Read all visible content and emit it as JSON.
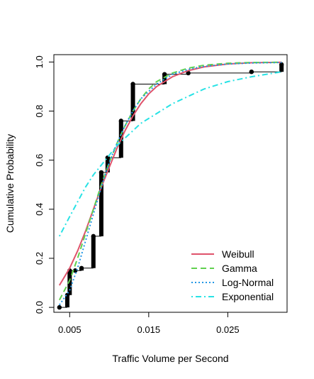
{
  "chart_data": {
    "type": "line",
    "title": "",
    "xlabel": "Traffic Volume per Second",
    "ylabel": "Cumulative Probability",
    "xlim": [
      0.003,
      0.0325
    ],
    "ylim": [
      -0.02,
      1.03
    ],
    "xticks": [
      0.005,
      0.015,
      0.025
    ],
    "xtick_labels": [
      "0.005",
      "0.015",
      "0.025"
    ],
    "yticks": [
      0.0,
      0.2,
      0.4,
      0.6,
      0.8,
      1.0
    ],
    "ytick_labels": [
      "0.0",
      "0.2",
      "0.4",
      "0.6",
      "0.8",
      "1.0"
    ],
    "grid": false,
    "legend_position": "bottom-right",
    "empirical_ecdf": {
      "x": [
        0.0037,
        0.0047,
        0.005,
        0.0057,
        0.0065,
        0.008,
        0.009,
        0.0098,
        0.0115,
        0.013,
        0.017,
        0.02,
        0.028,
        0.0318
      ],
      "y": [
        0.0,
        0.05,
        0.15,
        0.15,
        0.16,
        0.29,
        0.55,
        0.61,
        0.76,
        0.91,
        0.95,
        0.955,
        0.96,
        0.99
      ],
      "color": "#000000"
    },
    "series": [
      {
        "name": "Weibull",
        "color": "#df536b",
        "dash": "solid",
        "x": [
          0.0037,
          0.005,
          0.006,
          0.007,
          0.008,
          0.009,
          0.01,
          0.011,
          0.012,
          0.013,
          0.014,
          0.015,
          0.016,
          0.018,
          0.02,
          0.022,
          0.025,
          0.028,
          0.0318
        ],
        "y": [
          0.09,
          0.16,
          0.23,
          0.31,
          0.4,
          0.49,
          0.57,
          0.65,
          0.72,
          0.78,
          0.83,
          0.87,
          0.9,
          0.94,
          0.965,
          0.98,
          0.992,
          0.997,
          0.999
        ]
      },
      {
        "name": "Gamma",
        "color": "#61d04f",
        "dash": "dashed",
        "x": [
          0.0037,
          0.005,
          0.006,
          0.007,
          0.008,
          0.009,
          0.01,
          0.011,
          0.012,
          0.013,
          0.014,
          0.015,
          0.016,
          0.018,
          0.02,
          0.022,
          0.025,
          0.028,
          0.0318
        ],
        "y": [
          0.03,
          0.11,
          0.2,
          0.3,
          0.4,
          0.5,
          0.59,
          0.67,
          0.74,
          0.8,
          0.85,
          0.89,
          0.92,
          0.955,
          0.975,
          0.987,
          0.995,
          0.998,
          0.999
        ]
      },
      {
        "name": "Log-Normal",
        "color": "#2297e6",
        "dash": "dotted",
        "x": [
          0.0037,
          0.005,
          0.006,
          0.007,
          0.008,
          0.009,
          0.01,
          0.011,
          0.012,
          0.013,
          0.014,
          0.015,
          0.016,
          0.018,
          0.02,
          0.022,
          0.025,
          0.028,
          0.0318
        ],
        "y": [
          0.01,
          0.07,
          0.16,
          0.27,
          0.38,
          0.49,
          0.59,
          0.67,
          0.74,
          0.8,
          0.85,
          0.88,
          0.91,
          0.95,
          0.97,
          0.982,
          0.992,
          0.996,
          0.998
        ]
      },
      {
        "name": "Exponential",
        "color": "#28e2e5",
        "dash": "dotdash",
        "x": [
          0.0037,
          0.005,
          0.006,
          0.007,
          0.008,
          0.009,
          0.01,
          0.011,
          0.012,
          0.013,
          0.014,
          0.015,
          0.016,
          0.018,
          0.02,
          0.022,
          0.025,
          0.028,
          0.0318
        ],
        "y": [
          0.29,
          0.37,
          0.43,
          0.49,
          0.54,
          0.58,
          0.62,
          0.66,
          0.69,
          0.72,
          0.75,
          0.77,
          0.79,
          0.83,
          0.86,
          0.89,
          0.92,
          0.94,
          0.96
        ]
      }
    ]
  }
}
